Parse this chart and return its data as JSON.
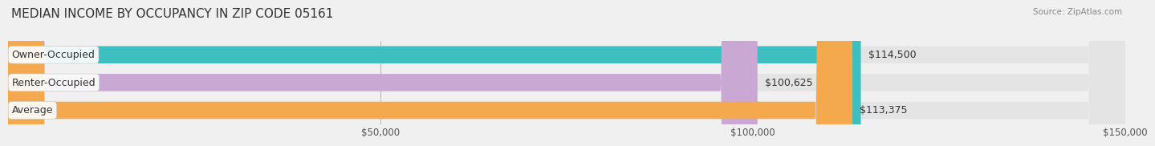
{
  "title": "MEDIAN INCOME BY OCCUPANCY IN ZIP CODE 05161",
  "source": "Source: ZipAtlas.com",
  "categories": [
    "Owner-Occupied",
    "Renter-Occupied",
    "Average"
  ],
  "values": [
    114500,
    100625,
    113375
  ],
  "bar_colors": [
    "#3dbfbf",
    "#c9a8d4",
    "#f5a94e"
  ],
  "bar_labels": [
    "$114,500",
    "$100,625",
    "$113,375"
  ],
  "xlim": [
    0,
    150000
  ],
  "xticks": [
    50000,
    100000,
    150000
  ],
  "xtick_labels": [
    "$50,000",
    "$100,000",
    "$150,000"
  ],
  "background_color": "#f0f0f0",
  "bar_bg_color": "#e4e4e4",
  "title_fontsize": 11,
  "label_fontsize": 9,
  "value_fontsize": 9
}
